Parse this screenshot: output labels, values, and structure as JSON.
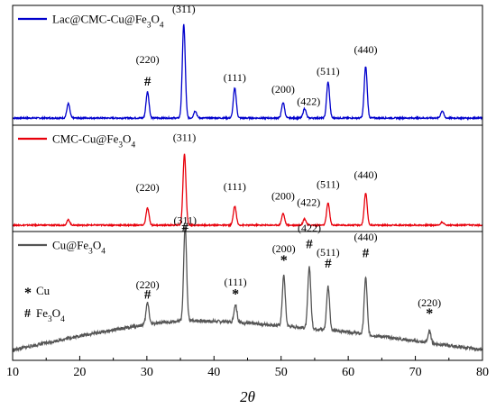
{
  "chart_data": {
    "type": "line",
    "xlabel": "2θ",
    "xlim": [
      10,
      80
    ],
    "x_ticks": [
      10,
      20,
      30,
      40,
      50,
      60,
      70,
      80
    ],
    "grid": false,
    "panels": [
      {
        "series": {
          "name": "Lac@CMC-Cu@Fe3O4",
          "color": "#0000cc",
          "baseline": [
            [
              10,
              0.06
            ],
            [
              80,
              0.06
            ]
          ],
          "peaks": [
            [
              18.3,
              0.12
            ],
            [
              30.1,
              0.22
            ],
            [
              35.5,
              0.78
            ],
            [
              37.2,
              0.06
            ],
            [
              43.1,
              0.25
            ],
            [
              50.3,
              0.13
            ],
            [
              53.5,
              0.08
            ],
            [
              57.0,
              0.3
            ],
            [
              62.6,
              0.43
            ],
            [
              74.0,
              0.06
            ]
          ]
        },
        "annotations": [
          {
            "text": "(220)",
            "x": 30.1,
            "y": 0.52
          },
          {
            "text": "#",
            "x": 30.1,
            "y": 0.33
          },
          {
            "text": "(311)",
            "x": 35.5,
            "y": 0.94
          },
          {
            "text": "(111)",
            "x": 43.1,
            "y": 0.37
          },
          {
            "text": "(200)",
            "x": 50.3,
            "y": 0.27
          },
          {
            "text": "(422)",
            "x": 54.1,
            "y": 0.17
          },
          {
            "text": "(511)",
            "x": 57.0,
            "y": 0.42
          },
          {
            "text": "(440)",
            "x": 62.6,
            "y": 0.6
          }
        ]
      },
      {
        "series": {
          "name": "CMC-Cu@Fe3O4",
          "color": "#e8000b",
          "baseline": [
            [
              10,
              0.06
            ],
            [
              80,
              0.06
            ]
          ],
          "peaks": [
            [
              18.3,
              0.05
            ],
            [
              30.1,
              0.16
            ],
            [
              35.6,
              0.67
            ],
            [
              43.1,
              0.18
            ],
            [
              50.3,
              0.11
            ],
            [
              53.5,
              0.06
            ],
            [
              57.0,
              0.21
            ],
            [
              62.6,
              0.3
            ],
            [
              74.0,
              0.03
            ]
          ]
        },
        "annotations": [
          {
            "text": "(220)",
            "x": 30.1,
            "y": 0.38
          },
          {
            "text": "(311)",
            "x": 35.6,
            "y": 0.85
          },
          {
            "text": "(111)",
            "x": 43.1,
            "y": 0.39
          },
          {
            "text": "(200)",
            "x": 50.3,
            "y": 0.3
          },
          {
            "text": "(422)",
            "x": 54.1,
            "y": 0.24
          },
          {
            "text": "(511)",
            "x": 57.0,
            "y": 0.41
          },
          {
            "text": "(440)",
            "x": 62.6,
            "y": 0.5
          }
        ]
      },
      {
        "series": {
          "name": "Cu@Fe3O4",
          "color": "#555555",
          "baseline": [
            [
              10,
              0.08
            ],
            [
              20,
              0.19
            ],
            [
              30,
              0.28
            ],
            [
              36,
              0.31
            ],
            [
              42,
              0.3
            ],
            [
              50,
              0.27
            ],
            [
              60,
              0.22
            ],
            [
              70,
              0.15
            ],
            [
              80,
              0.08
            ]
          ],
          "peaks": [
            [
              30.1,
              0.17
            ],
            [
              35.7,
              0.73
            ],
            [
              43.2,
              0.14
            ],
            [
              50.4,
              0.39
            ],
            [
              54.2,
              0.48
            ],
            [
              57.0,
              0.34
            ],
            [
              62.6,
              0.44
            ],
            [
              72.1,
              0.09
            ]
          ]
        },
        "annotations": [
          {
            "text": "(220)",
            "x": 30.1,
            "y": 0.56
          },
          {
            "text": "#",
            "x": 30.1,
            "y": 0.48
          },
          {
            "text": "(311)",
            "x": 35.7,
            "y": 1.06
          },
          {
            "text": "#",
            "x": 35.7,
            "y": 1.0
          },
          {
            "text": "(111)",
            "x": 43.2,
            "y": 0.58
          },
          {
            "text": "*",
            "x": 43.2,
            "y": 0.48
          },
          {
            "text": "(200)",
            "x": 50.4,
            "y": 0.84
          },
          {
            "text": "*",
            "x": 50.4,
            "y": 0.74
          },
          {
            "text": "(422)",
            "x": 54.2,
            "y": 1.0
          },
          {
            "text": "#",
            "x": 54.2,
            "y": 0.87
          },
          {
            "text": "(511)",
            "x": 57.0,
            "y": 0.81
          },
          {
            "text": "#",
            "x": 57.0,
            "y": 0.72
          },
          {
            "text": "(440)",
            "x": 62.6,
            "y": 0.93
          },
          {
            "text": "#",
            "x": 62.6,
            "y": 0.8
          },
          {
            "text": "(220)",
            "x": 72.1,
            "y": 0.42
          },
          {
            "text": "*",
            "x": 72.1,
            "y": 0.33
          }
        ],
        "marker_legend": [
          {
            "symbol": "*",
            "label": "Cu"
          },
          {
            "symbol": "#",
            "label": "Fe3O4"
          }
        ]
      }
    ]
  }
}
